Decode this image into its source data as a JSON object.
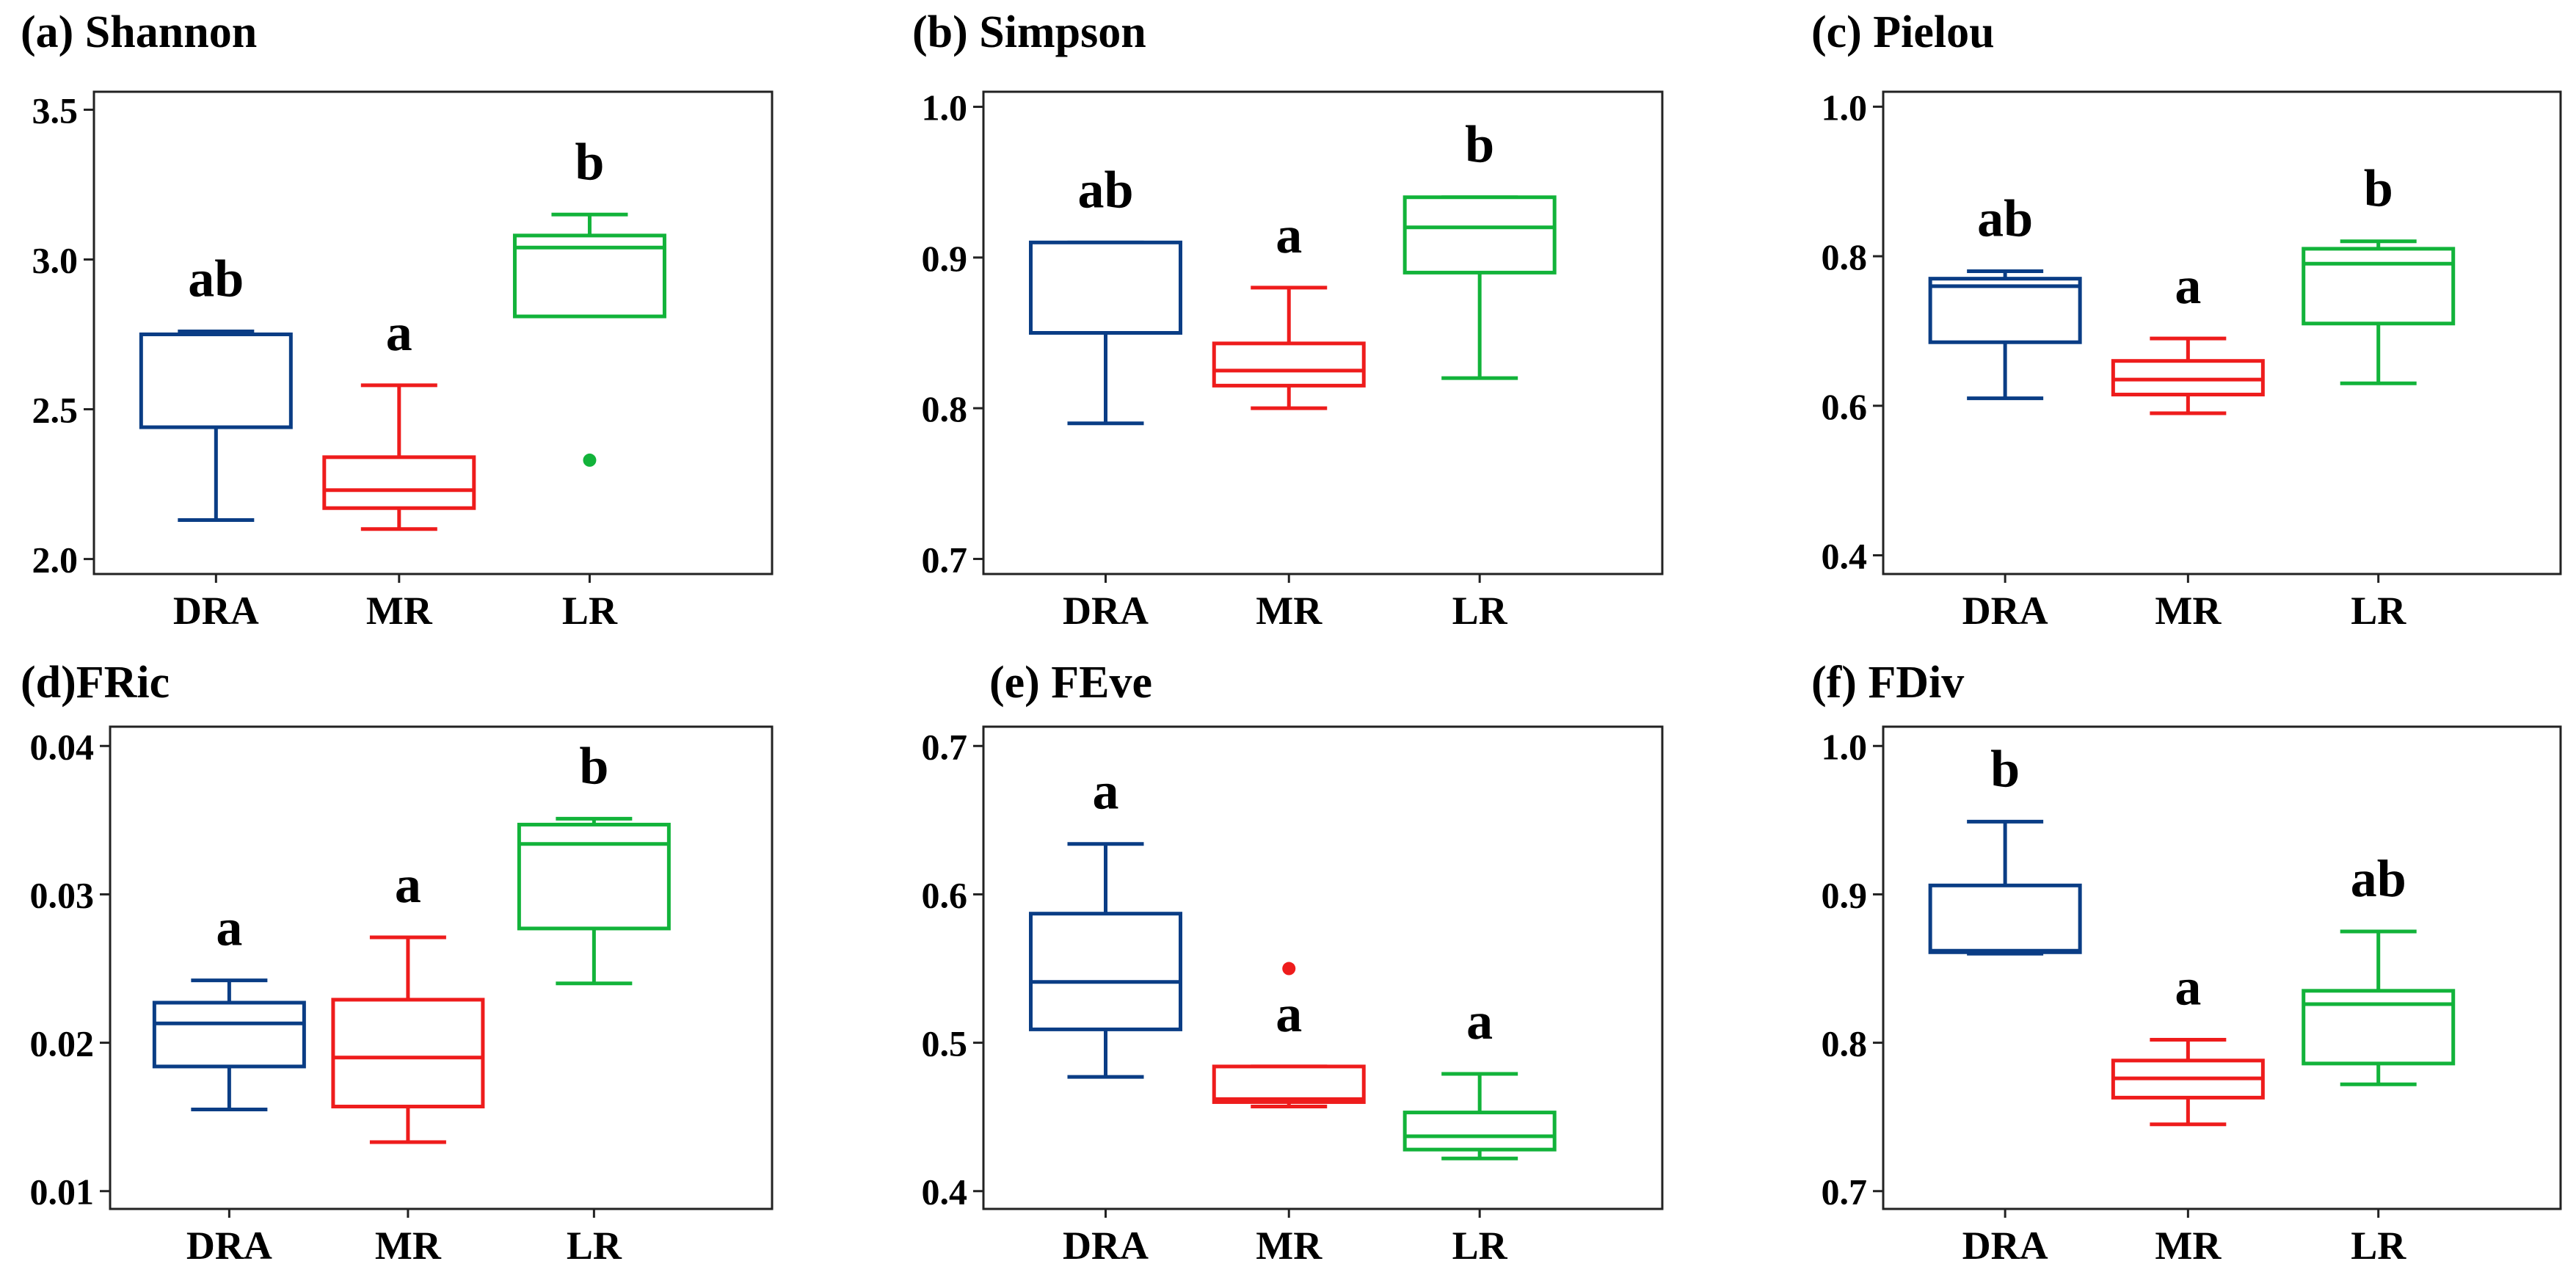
{
  "colors": {
    "DRA": "#0a3d85",
    "MR": "#ee1c1c",
    "LR": "#12b33a"
  },
  "chart_data": [
    {
      "type": "boxplot",
      "title": "(a) Shannon",
      "categories": [
        "DRA",
        "MR",
        "LR"
      ],
      "ylim": [
        1.95,
        3.56
      ],
      "yticks": [
        2.0,
        2.5,
        3.0,
        3.5
      ],
      "ytick_labels": [
        "2.0",
        "2.5",
        "3.0",
        "3.5"
      ],
      "boxes": [
        {
          "group": "DRA",
          "min": 2.13,
          "q1": 2.44,
          "median": 2.75,
          "q3": 2.75,
          "max": 2.76,
          "outliers": [],
          "letter": "ab"
        },
        {
          "group": "MR",
          "min": 2.1,
          "q1": 2.17,
          "median": 2.23,
          "q3": 2.34,
          "max": 2.58,
          "outliers": [],
          "letter": "a"
        },
        {
          "group": "LR",
          "min": 2.81,
          "q1": 2.81,
          "median": 3.04,
          "q3": 3.08,
          "max": 3.15,
          "outliers": [
            2.33
          ],
          "letter": "b"
        }
      ]
    },
    {
      "type": "boxplot",
      "title": "(b) Simpson",
      "categories": [
        "DRA",
        "MR",
        "LR"
      ],
      "ylim": [
        0.69,
        1.01
      ],
      "yticks": [
        0.7,
        0.8,
        0.9,
        1.0
      ],
      "ytick_labels": [
        "0.7",
        "0.8",
        "0.9",
        "1.0"
      ],
      "boxes": [
        {
          "group": "DRA",
          "min": 0.79,
          "q1": 0.85,
          "median": 0.85,
          "q3": 0.91,
          "max": 0.91,
          "outliers": [],
          "letter": "ab"
        },
        {
          "group": "MR",
          "min": 0.8,
          "q1": 0.815,
          "median": 0.825,
          "q3": 0.843,
          "max": 0.88,
          "outliers": [],
          "letter": "a"
        },
        {
          "group": "LR",
          "min": 0.82,
          "q1": 0.89,
          "median": 0.92,
          "q3": 0.94,
          "max": 0.94,
          "outliers": [],
          "letter": "b"
        }
      ]
    },
    {
      "type": "boxplot",
      "title": "(c) Pielou",
      "categories": [
        "DRA",
        "MR",
        "LR"
      ],
      "ylim": [
        0.375,
        1.02
      ],
      "yticks": [
        0.4,
        0.6,
        0.8,
        1.0
      ],
      "ytick_labels": [
        "0.4",
        "0.6",
        "0.8",
        "1.0"
      ],
      "boxes": [
        {
          "group": "DRA",
          "min": 0.61,
          "q1": 0.685,
          "median": 0.76,
          "q3": 0.77,
          "max": 0.78,
          "outliers": [],
          "letter": "ab"
        },
        {
          "group": "MR",
          "min": 0.59,
          "q1": 0.615,
          "median": 0.635,
          "q3": 0.66,
          "max": 0.69,
          "outliers": [],
          "letter": "a"
        },
        {
          "group": "LR",
          "min": 0.63,
          "q1": 0.71,
          "median": 0.79,
          "q3": 0.81,
          "max": 0.82,
          "outliers": [],
          "letter": "b"
        }
      ]
    },
    {
      "type": "boxplot",
      "title": "(d)FRic",
      "categories": [
        "DRA",
        "MR",
        "LR"
      ],
      "ylim": [
        0.0088,
        0.0413
      ],
      "yticks": [
        0.01,
        0.02,
        0.03,
        0.04
      ],
      "ytick_labels": [
        "0.01",
        "0.02",
        "0.03",
        "0.04"
      ],
      "boxes": [
        {
          "group": "DRA",
          "min": 0.0155,
          "q1": 0.0184,
          "median": 0.0213,
          "q3": 0.0227,
          "max": 0.0242,
          "outliers": [],
          "letter": "a"
        },
        {
          "group": "MR",
          "min": 0.0133,
          "q1": 0.0157,
          "median": 0.019,
          "q3": 0.0229,
          "max": 0.0271,
          "outliers": [],
          "letter": "a"
        },
        {
          "group": "LR",
          "min": 0.024,
          "q1": 0.0277,
          "median": 0.0334,
          "q3": 0.0347,
          "max": 0.0351,
          "outliers": [],
          "letter": "b"
        }
      ]
    },
    {
      "type": "boxplot",
      "title": "(e) FEve",
      "categories": [
        "DRA",
        "MR",
        "LR"
      ],
      "ylim": [
        0.388,
        0.713
      ],
      "yticks": [
        0.4,
        0.5,
        0.6,
        0.7
      ],
      "ytick_labels": [
        "0.4",
        "0.5",
        "0.6",
        "0.7"
      ],
      "boxes": [
        {
          "group": "DRA",
          "min": 0.477,
          "q1": 0.509,
          "median": 0.541,
          "q3": 0.587,
          "max": 0.634,
          "outliers": [],
          "letter": "a"
        },
        {
          "group": "MR",
          "min": 0.457,
          "q1": 0.46,
          "median": 0.462,
          "q3": 0.484,
          "max": 0.484,
          "outliers": [
            0.55
          ],
          "letter": "a"
        },
        {
          "group": "LR",
          "min": 0.422,
          "q1": 0.428,
          "median": 0.437,
          "q3": 0.453,
          "max": 0.479,
          "outliers": [],
          "letter": "a"
        }
      ]
    },
    {
      "type": "boxplot",
      "title": "(f) FDiv",
      "categories": [
        "DRA",
        "MR",
        "LR"
      ],
      "ylim": [
        0.688,
        1.013
      ],
      "yticks": [
        0.7,
        0.8,
        0.9,
        1.0
      ],
      "ytick_labels": [
        "0.7",
        "0.8",
        "0.9",
        "1.0"
      ],
      "boxes": [
        {
          "group": "DRA",
          "min": 0.86,
          "q1": 0.861,
          "median": 0.862,
          "q3": 0.906,
          "max": 0.949,
          "outliers": [],
          "letter": "b"
        },
        {
          "group": "MR",
          "min": 0.745,
          "q1": 0.763,
          "median": 0.776,
          "q3": 0.788,
          "max": 0.802,
          "outliers": [],
          "letter": "a"
        },
        {
          "group": "LR",
          "min": 0.772,
          "q1": 0.786,
          "median": 0.826,
          "q3": 0.835,
          "max": 0.875,
          "outliers": [],
          "letter": "ab"
        }
      ]
    }
  ]
}
